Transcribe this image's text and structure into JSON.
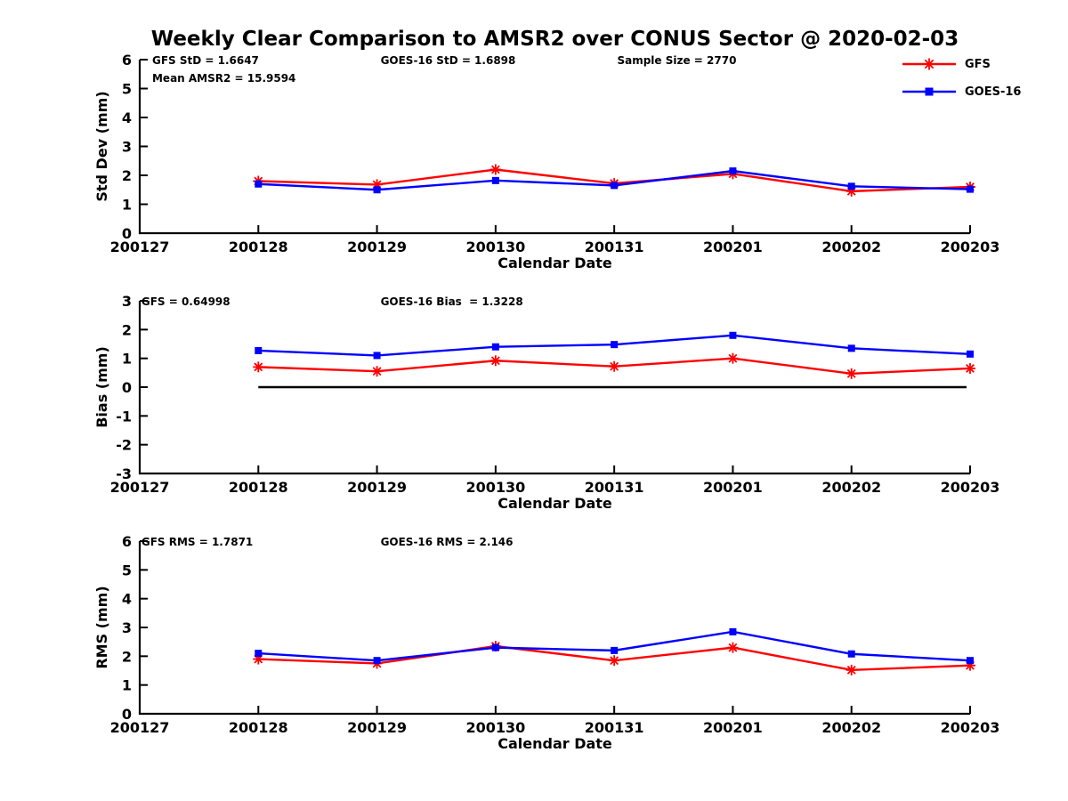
{
  "title": "Weekly Clear Comparison to AMSR2 over CONUS Sector @ 2020-02-03",
  "legend": [
    {
      "label": "GFS",
      "color": "#ff0000",
      "marker": "star"
    },
    {
      "label": "GOES-16",
      "color": "#0000ff",
      "marker": "square"
    }
  ],
  "chart_data": [
    {
      "type": "line",
      "id": "std-dev",
      "xlabel": "Calendar Date",
      "ylabel": "Std Dev (mm)",
      "ylim": [
        0,
        6
      ],
      "yticks": [
        6,
        5,
        4,
        3,
        2,
        1,
        0
      ],
      "grid": false,
      "categories": [
        "200127",
        "200128",
        "200129",
        "200130",
        "200131",
        "200201",
        "200202",
        "200203"
      ],
      "data_x": [
        "200128",
        "200129",
        "200130",
        "200131",
        "200201",
        "200202",
        "200203"
      ],
      "annotations": [
        {
          "text": "GFS StD = 1.6647",
          "fx": 0.015,
          "row": 0
        },
        {
          "text": "GOES-16 StD = 1.6898",
          "fx": 0.29,
          "row": 0
        },
        {
          "text": "Sample Size = 2770",
          "fx": 0.575,
          "row": 0
        },
        {
          "text": "Mean AMSR2 = 15.9594",
          "fx": 0.015,
          "row": 1
        }
      ],
      "zero_line": false,
      "series": [
        {
          "name": "GFS",
          "color": "#ff0000",
          "marker": "star",
          "values": [
            1.8,
            1.68,
            2.2,
            1.72,
            2.05,
            1.45,
            1.6
          ]
        },
        {
          "name": "GOES-16",
          "color": "#0000ff",
          "marker": "square",
          "values": [
            1.7,
            1.5,
            1.82,
            1.65,
            2.15,
            1.62,
            1.52
          ]
        }
      ]
    },
    {
      "type": "line",
      "id": "bias",
      "xlabel": "Calendar Date",
      "ylabel": "Bias (mm)",
      "ylim": [
        -3,
        3
      ],
      "yticks": [
        3,
        2,
        1,
        0,
        -1,
        -2,
        -3
      ],
      "grid": false,
      "categories": [
        "200127",
        "200128",
        "200129",
        "200130",
        "200131",
        "200201",
        "200202",
        "200203"
      ],
      "data_x": [
        "200128",
        "200129",
        "200130",
        "200131",
        "200201",
        "200202",
        "200203"
      ],
      "annotations": [
        {
          "text": "GFS = 0.64998",
          "fx": 0.002,
          "row": 0
        },
        {
          "text": "GOES-16 Bias  = 1.3228",
          "fx": 0.29,
          "row": 0
        }
      ],
      "zero_line": true,
      "series": [
        {
          "name": "GFS",
          "color": "#ff0000",
          "marker": "star",
          "values": [
            0.7,
            0.55,
            0.92,
            0.72,
            1.0,
            0.47,
            0.65
          ]
        },
        {
          "name": "GOES-16",
          "color": "#0000ff",
          "marker": "square",
          "values": [
            1.27,
            1.1,
            1.4,
            1.48,
            1.8,
            1.35,
            1.15
          ]
        }
      ]
    },
    {
      "type": "line",
      "id": "rms",
      "xlabel": "Calendar Date",
      "ylabel": "RMS (mm)",
      "ylim": [
        0,
        6
      ],
      "yticks": [
        6,
        5,
        4,
        3,
        2,
        1,
        0
      ],
      "grid": false,
      "categories": [
        "200127",
        "200128",
        "200129",
        "200130",
        "200131",
        "200201",
        "200202",
        "200203"
      ],
      "data_x": [
        "200128",
        "200129",
        "200130",
        "200131",
        "200201",
        "200202",
        "200203"
      ],
      "annotations": [
        {
          "text": "GFS RMS = 1.7871",
          "fx": 0.002,
          "row": 0
        },
        {
          "text": "GOES-16 RMS = 2.146",
          "fx": 0.29,
          "row": 0
        }
      ],
      "zero_line": false,
      "series": [
        {
          "name": "GFS",
          "color": "#ff0000",
          "marker": "star",
          "values": [
            1.9,
            1.75,
            2.35,
            1.85,
            2.3,
            1.52,
            1.68
          ]
        },
        {
          "name": "GOES-16",
          "color": "#0000ff",
          "marker": "square",
          "values": [
            2.1,
            1.85,
            2.3,
            2.2,
            2.85,
            2.08,
            1.85
          ]
        }
      ]
    }
  ]
}
